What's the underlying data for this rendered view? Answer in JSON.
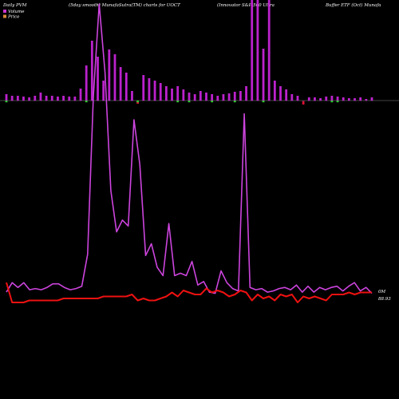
{
  "chart_data": {
    "type": "bar+line",
    "title_parts": [
      "Daily PVM",
      "(5day smooth) MunafaSutra(TM) charts for UOCT",
      "(Innovator S&P 500  Ultra",
      "Buffer ETF (Oct) Munafa"
    ],
    "legend": [
      {
        "name": "Volume",
        "color": "#cc33cc"
      },
      {
        "name": "Price",
        "color": "#d9883a"
      }
    ],
    "volume_label": "0M",
    "price_label": "88.93",
    "colors": {
      "volume_line": "#cc44dd",
      "price_line": "#ee1111",
      "bar_positive": "#bb22cc",
      "bar_negative": "#dd1133",
      "signal_green": "#33cc33",
      "axis": "#888888"
    },
    "bar_direction": [
      1,
      1,
      1,
      1,
      1,
      1,
      1,
      1,
      1,
      1,
      1,
      1,
      1,
      1,
      1,
      1,
      1,
      1,
      1,
      1,
      1,
      1,
      1,
      -1,
      1,
      1,
      1,
      1,
      1,
      1,
      1,
      1,
      1,
      1,
      1,
      1,
      1,
      1,
      1,
      1,
      1,
      1,
      1,
      1,
      1,
      1,
      1,
      1,
      1,
      1,
      1,
      1,
      -1,
      1,
      1,
      1,
      1,
      1,
      1,
      1,
      1,
      1,
      1,
      1,
      1
    ],
    "bar_heights": [
      8,
      6,
      6,
      5,
      4,
      6,
      10,
      6,
      6,
      5,
      6,
      5,
      5,
      15,
      44,
      75,
      55,
      25,
      64,
      58,
      42,
      35,
      12,
      4,
      32,
      28,
      25,
      22,
      18,
      15,
      18,
      14,
      10,
      8,
      12,
      10,
      8,
      6,
      8,
      9,
      11,
      12,
      18,
      130,
      140,
      65,
      130,
      25,
      18,
      14,
      8,
      6,
      5,
      4,
      4,
      3,
      5,
      6,
      5,
      4,
      3,
      3,
      4,
      2,
      4
    ],
    "signal_row": [
      -1,
      0,
      0,
      0,
      0,
      0,
      0,
      0,
      0,
      0,
      0,
      0,
      0,
      0,
      -1,
      0,
      0,
      0,
      0,
      0,
      0,
      0,
      0,
      -1,
      0,
      0,
      0,
      0,
      0,
      0,
      -1,
      0,
      -1,
      0,
      0,
      0,
      -1,
      0,
      0,
      0,
      -1,
      0,
      0,
      0,
      0,
      -1,
      0,
      0,
      0,
      0,
      0,
      0,
      0,
      0,
      0,
      0,
      0,
      -1,
      -1,
      0,
      0,
      0,
      0,
      0,
      0
    ],
    "volume_line": [
      4,
      12,
      8,
      12,
      6,
      7,
      6,
      8,
      11,
      11,
      8,
      6,
      7,
      9,
      36,
      170,
      248,
      190,
      90,
      55,
      65,
      60,
      150,
      112,
      35,
      45,
      25,
      18,
      62,
      18,
      20,
      18,
      30,
      10,
      13,
      4,
      3,
      22,
      12,
      7,
      5,
      155,
      8,
      6,
      7,
      4,
      5,
      7,
      8,
      6,
      10,
      4,
      9,
      4,
      8,
      6,
      8,
      9,
      5,
      9,
      12,
      5,
      8,
      3
    ],
    "price_line": [
      12,
      2,
      2,
      2,
      3,
      3,
      3,
      3,
      3,
      3,
      4,
      4,
      4,
      4,
      4,
      4,
      4,
      5,
      5,
      5,
      5,
      5,
      6,
      3,
      4,
      3,
      3,
      4,
      5,
      7,
      5,
      8,
      7,
      6,
      6,
      9,
      7,
      8,
      7,
      5,
      6,
      8,
      7,
      3,
      6,
      4,
      5,
      3,
      6,
      5,
      6,
      2,
      5,
      4,
      5,
      4,
      3,
      6,
      6,
      6,
      7,
      6,
      7,
      7,
      7
    ],
    "volume_ylim": [
      0,
      250
    ],
    "price_ylim": [
      0,
      20
    ],
    "grid": false
  }
}
